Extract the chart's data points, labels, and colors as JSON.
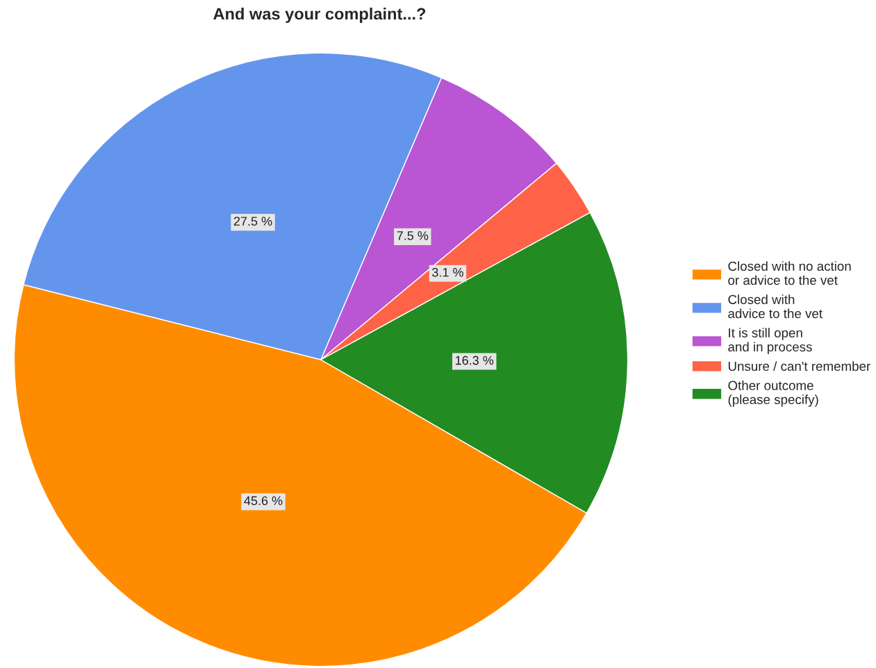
{
  "chart_data": {
    "type": "pie",
    "title": "And was your complaint...?",
    "categories": [
      "Closed with no action\nor advice to the vet",
      "Closed with\nadvice to the vet",
      "It is still open\nand in process",
      "Unsure / can't remember",
      "Other outcome\n(please specify)"
    ],
    "values": [
      45.6,
      27.5,
      7.5,
      3.1,
      16.3
    ],
    "colors": [
      "#ff8c00",
      "#6495ed",
      "#ba55d3",
      "#ff6347",
      "#228b22"
    ],
    "value_labels": [
      "45.6 %",
      "27.5 %",
      "7.5 %",
      "3.1 %",
      "16.3 %"
    ],
    "legend": "right"
  }
}
